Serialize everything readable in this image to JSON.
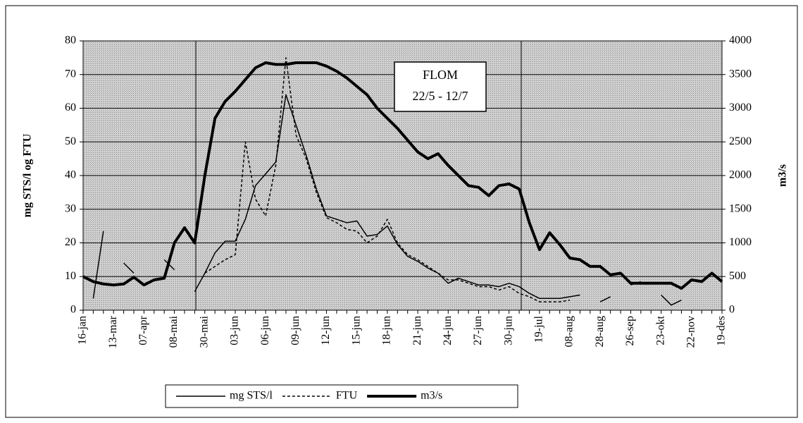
{
  "chart_data": {
    "type": "line",
    "categories": [
      "16-jan",
      null,
      null,
      "13-mar",
      null,
      null,
      "07-apr",
      null,
      null,
      "08-mai",
      null,
      null,
      "30-mai",
      null,
      null,
      "03-jun",
      null,
      null,
      "06-jun",
      null,
      null,
      "09-jun",
      null,
      null,
      "12-jun",
      null,
      null,
      "15-jun",
      null,
      null,
      "18-jun",
      null,
      null,
      "21-jun",
      null,
      null,
      "24-jun",
      null,
      null,
      "27-jun",
      null,
      null,
      "30-jun",
      null,
      null,
      "19-jul",
      null,
      null,
      "08-aug",
      null,
      null,
      "28-aug",
      null,
      null,
      "26-sep",
      null,
      null,
      "23-okt",
      null,
      null,
      "22-nov",
      null,
      null,
      "19-des"
    ],
    "series": [
      {
        "name": "mg STS/l",
        "color": "#000000",
        "style": "solid",
        "values": [
          null,
          3.5,
          23.5,
          null,
          14,
          11,
          null,
          null,
          15,
          12,
          null,
          5.5,
          11,
          17,
          20.5,
          20.5,
          27,
          37,
          40.5,
          44,
          64,
          55,
          46,
          36,
          28,
          27,
          26,
          26.5,
          22,
          22.5,
          25,
          19.5,
          16,
          14.5,
          12.5,
          11,
          8,
          9.5,
          8.5,
          7.5,
          7.5,
          7,
          8,
          7,
          5,
          3.5,
          3.5,
          3.5,
          4,
          4.5,
          null,
          2.5,
          4,
          null,
          7.5,
          8.5,
          null,
          4.5,
          1.5,
          3,
          null,
          null,
          null,
          null
        ]
      },
      {
        "name": "FTU",
        "color": "#000000",
        "style": "dashed",
        "values": [
          null,
          null,
          null,
          null,
          null,
          null,
          null,
          null,
          null,
          null,
          null,
          null,
          11,
          13,
          15,
          16.5,
          50,
          33,
          28,
          43,
          75,
          52,
          45,
          35,
          27.5,
          26,
          24,
          23.5,
          20,
          22,
          27,
          20,
          16.5,
          15,
          13,
          11,
          9,
          9,
          8,
          7,
          7,
          6,
          7,
          5,
          4,
          2.5,
          2.5,
          2.5,
          3,
          null,
          null,
          null,
          null,
          null,
          null,
          null,
          null,
          null,
          null,
          null,
          null,
          null,
          null,
          null
        ]
      },
      {
        "name": "m3/s",
        "color": "#000000",
        "style": "thick",
        "axis": "y2",
        "values": [
          500,
          425,
          390,
          375,
          390,
          490,
          375,
          450,
          475,
          1000,
          1225,
          1000,
          2000,
          2850,
          3100,
          3250,
          3425,
          3600,
          3675,
          3650,
          3650,
          3675,
          3675,
          3675,
          3625,
          3550,
          3450,
          3325,
          3200,
          3000,
          2850,
          2700,
          2525,
          2350,
          2250,
          2325,
          2150,
          2000,
          1850,
          1825,
          1700,
          1850,
          1875,
          1800,
          1300,
          900,
          1150,
          975,
          775,
          750,
          650,
          650,
          525,
          550,
          400,
          400,
          400,
          400,
          400,
          325,
          450,
          425,
          550,
          425
        ]
      }
    ],
    "y_label": "mg STS/l og FTU",
    "y2_label": "m3/s",
    "ylim": [
      0,
      80
    ],
    "yticks": [
      0,
      10,
      20,
      30,
      40,
      50,
      60,
      70,
      80
    ],
    "y2lim": [
      0,
      4000
    ],
    "y2ticks": [
      0,
      500,
      1000,
      1500,
      2000,
      2500,
      3000,
      3500,
      4000
    ],
    "annotations": [
      "FLOM",
      "22/5 - 12/7"
    ],
    "grid": true,
    "legend": "bottom"
  }
}
